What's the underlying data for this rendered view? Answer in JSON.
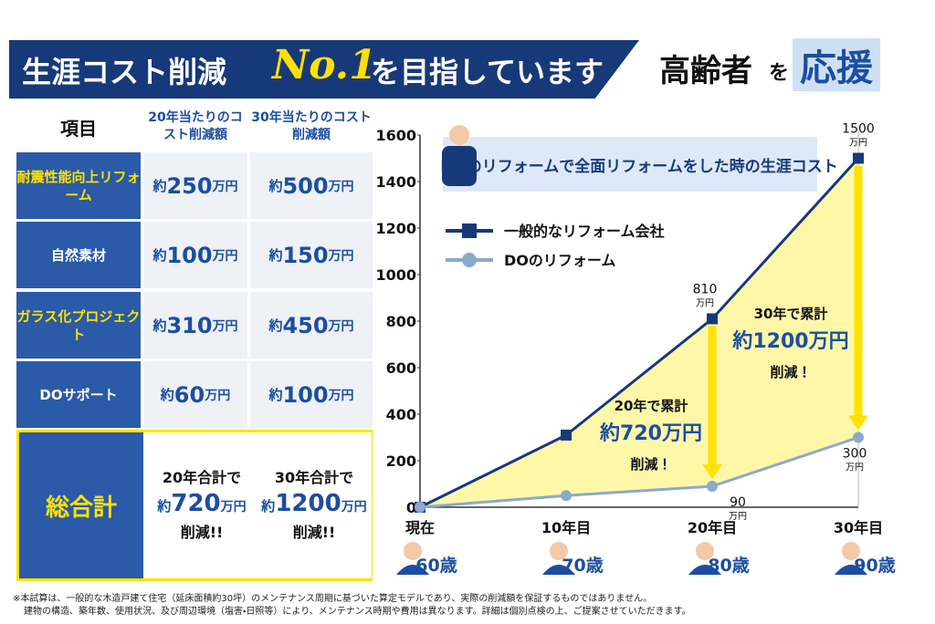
{
  "header": {
    "title_pre": "生涯コスト削減",
    "title_no1": "No.1",
    "title_post": "を目指しています",
    "badge": [
      "高齢者",
      "を",
      "応援"
    ]
  },
  "table": {
    "headers": [
      "項目",
      "20年当たりのコスト削減額",
      "30年当たりのコスト削減額"
    ],
    "rows": [
      {
        "item": "耐震性能向上リフォーム",
        "y20": [
          "約",
          "250",
          "万円"
        ],
        "y30": [
          "約",
          "500",
          "万円"
        ]
      },
      {
        "item": "自然素材",
        "y20": [
          "約",
          "100",
          "万円"
        ],
        "y30": [
          "約",
          "150",
          "万円"
        ]
      },
      {
        "item": "ガラス化プロジェクト",
        "y20": [
          "約",
          "310",
          "万円"
        ],
        "y30": [
          "約",
          "450",
          "万円"
        ]
      },
      {
        "item": "DOサポート",
        "y20": [
          "約",
          "60",
          "万円"
        ],
        "y30": [
          "約",
          "100",
          "万円"
        ]
      }
    ],
    "total": {
      "item": "総合計",
      "y20": [
        "20年合計で",
        "約",
        "720",
        "万円",
        "削減!!"
      ],
      "y30": [
        "30年合計で",
        "約",
        "1200",
        "万円",
        "削減!!"
      ]
    }
  },
  "chart_data": {
    "type": "line",
    "title": "DOのリフォームで全面リフォームをした時の生涯コスト",
    "categories": [
      "現在",
      "10年目",
      "20年目",
      "30年目"
    ],
    "ages": [
      "60歳",
      "70歳",
      "80歳",
      "90歳"
    ],
    "unit": "万円",
    "series": [
      {
        "name": "一般的なリフォーム会社",
        "color": "#17397a",
        "values": [
          0,
          310,
          810,
          1500
        ],
        "value_labels": [
          null,
          null,
          "810",
          "1500"
        ]
      },
      {
        "name": "DOのリフォーム",
        "color": "#8aa9cc",
        "values": [
          0,
          50,
          90,
          300
        ],
        "value_labels": [
          null,
          null,
          "90",
          "300"
        ]
      }
    ],
    "ylim": [
      0,
      1600
    ],
    "yticks": [
      0,
      200,
      400,
      600,
      800,
      1000,
      1200,
      1400,
      1600
    ],
    "grid": false,
    "area_color": "#fff7a8",
    "annotations": [
      {
        "lines": [
          "20年で累計",
          "約720万円",
          "削減！"
        ]
      },
      {
        "lines": [
          "30年で累計",
          "約1200万円",
          "削減！"
        ]
      }
    ]
  },
  "footnote": [
    "※本試算は、一般的な木造戸建て住宅（延床面積約30坪）のメンテナンス周期に基づいた算定モデルであり、実際の削減額を保証するものではありません。",
    "建物の構造、築年数、使用状況、及び周辺環境（塩害・日照等）により、メンテナンス時期や費用は異なります。詳細は個別点検の上、ご提案させていただきます。"
  ]
}
